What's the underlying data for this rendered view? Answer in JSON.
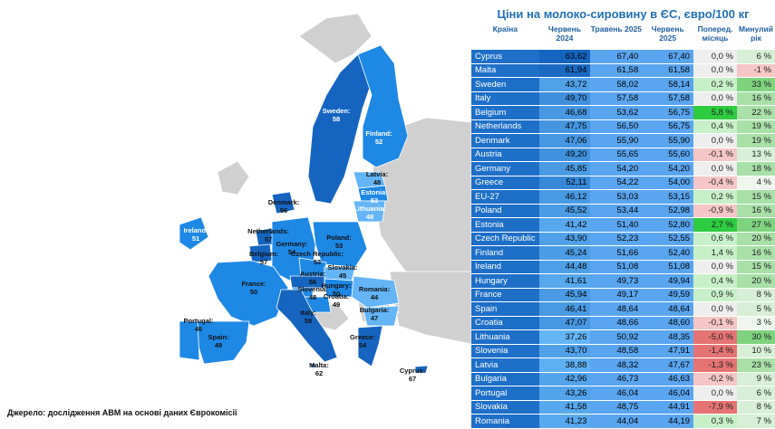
{
  "title": "Ціни на молоко-сировину в ЄС, євро/100 кг",
  "source": "Джерело: дослідження АВМ на основі даних Єврокомісії",
  "headers": {
    "country": "Країна",
    "jun2024": "Червень 2024",
    "may2025": "Травень 2025",
    "jun2025": "Червень 2025",
    "prev_month": "Поперед. місяць",
    "prev_year": "Минулий рік"
  },
  "colors": {
    "dark_blue": "#1565c0",
    "mid_blue": "#1e88e5",
    "light_blue": "#64b5f6",
    "grey_land": "#d0d0d0",
    "positive_green": "#2ecc40",
    "negative_red": "#e57373",
    "title_blue": "#1f6fb5"
  },
  "map_labels": [
    {
      "name": "Sweden",
      "value": "58"
    },
    {
      "name": "Finland",
      "value": "52"
    },
    {
      "name": "Latvia",
      "value": "48"
    },
    {
      "name": "Estonia",
      "value": "53"
    },
    {
      "name": "Lithuania",
      "value": "48"
    },
    {
      "name": "Denmark",
      "value": "56"
    },
    {
      "name": "Ireland",
      "value": "51"
    },
    {
      "name": "Netherlands",
      "value": "57"
    },
    {
      "name": "Germany",
      "value": "54"
    },
    {
      "name": "Belgium",
      "value": "57"
    },
    {
      "name": "Poland",
      "value": "53"
    },
    {
      "name": "Czech Republic",
      "value": "53"
    },
    {
      "name": "Slovakia",
      "value": "45"
    },
    {
      "name": "Austria",
      "value": "56"
    },
    {
      "name": "Hungary",
      "value": "50"
    },
    {
      "name": "Slovenia",
      "value": "48"
    },
    {
      "name": "Croatia",
      "value": "49"
    },
    {
      "name": "Romania",
      "value": "44"
    },
    {
      "name": "France",
      "value": "50"
    },
    {
      "name": "Bulgaria",
      "value": "47"
    },
    {
      "name": "Italy",
      "value": "58"
    },
    {
      "name": "Portugal",
      "value": "46"
    },
    {
      "name": "Spain",
      "value": "49"
    },
    {
      "name": "Greece",
      "value": "54"
    },
    {
      "name": "Malta",
      "value": "62"
    },
    {
      "name": "Cyprus",
      "value": "67"
    }
  ],
  "chart_data": {
    "type": "table",
    "title": "Ціни на молоко-сировину в ЄС, євро/100 кг",
    "columns": [
      "Країна",
      "Червень 2024",
      "Травень 2025",
      "Червень 2025",
      "Поперед. місяць",
      "Минулий рік"
    ],
    "rows": [
      {
        "country": "Cyprus",
        "jun2024": "63,62",
        "may2025": "67,40",
        "jun2025": "67,40",
        "mom": "0,0 %",
        "yoy": "6 %",
        "mom_v": 0.0,
        "yoy_v": 6
      },
      {
        "country": "Malta",
        "jun2024": "61,94",
        "may2025": "61,58",
        "jun2025": "61,58",
        "mom": "0,0 %",
        "yoy": "-1 %",
        "mom_v": 0.0,
        "yoy_v": -1
      },
      {
        "country": "Sweden",
        "jun2024": "43,72",
        "may2025": "58,02",
        "jun2025": "58,14",
        "mom": "0,2 %",
        "yoy": "33 %",
        "mom_v": 0.2,
        "yoy_v": 33
      },
      {
        "country": "Italy",
        "jun2024": "49,70",
        "may2025": "57,58",
        "jun2025": "57,58",
        "mom": "0,0 %",
        "yoy": "16 %",
        "mom_v": 0.0,
        "yoy_v": 16
      },
      {
        "country": "Belgium",
        "jun2024": "46,68",
        "may2025": "53,62",
        "jun2025": "56,75",
        "mom": "5,8 %",
        "yoy": "22 %",
        "mom_v": 5.8,
        "yoy_v": 22
      },
      {
        "country": "Netherlands",
        "jun2024": "47,75",
        "may2025": "56,50",
        "jun2025": "56,75",
        "mom": "0,4 %",
        "yoy": "19 %",
        "mom_v": 0.4,
        "yoy_v": 19
      },
      {
        "country": "Denmark",
        "jun2024": "47,06",
        "may2025": "55,90",
        "jun2025": "55,90",
        "mom": "0,0 %",
        "yoy": "19 %",
        "mom_v": 0.0,
        "yoy_v": 19
      },
      {
        "country": "Austria",
        "jun2024": "49,20",
        "may2025": "55,65",
        "jun2025": "55,60",
        "mom": "-0,1 %",
        "yoy": "13 %",
        "mom_v": -0.1,
        "yoy_v": 13
      },
      {
        "country": "Germany",
        "jun2024": "45,85",
        "may2025": "54,20",
        "jun2025": "54,20",
        "mom": "0,0 %",
        "yoy": "18 %",
        "mom_v": 0.0,
        "yoy_v": 18
      },
      {
        "country": "Greece",
        "jun2024": "52,11",
        "may2025": "54,22",
        "jun2025": "54,00",
        "mom": "-0,4 %",
        "yoy": "4 %",
        "mom_v": -0.4,
        "yoy_v": 4
      },
      {
        "country": "EU-27",
        "jun2024": "46,12",
        "may2025": "53,03",
        "jun2025": "53,15",
        "mom": "0,2 %",
        "yoy": "15 %",
        "mom_v": 0.2,
        "yoy_v": 15
      },
      {
        "country": "Poland",
        "jun2024": "45,52",
        "may2025": "53,44",
        "jun2025": "52,98",
        "mom": "-0,9 %",
        "yoy": "16 %",
        "mom_v": -0.9,
        "yoy_v": 16
      },
      {
        "country": "Estonia",
        "jun2024": "41,42",
        "may2025": "51,40",
        "jun2025": "52,80",
        "mom": "2,7 %",
        "yoy": "27 %",
        "mom_v": 2.7,
        "yoy_v": 27
      },
      {
        "country": "Czech Republic",
        "jun2024": "43,90",
        "may2025": "52,23",
        "jun2025": "52,55",
        "mom": "0,6 %",
        "yoy": "20 %",
        "mom_v": 0.6,
        "yoy_v": 20
      },
      {
        "country": "Finland",
        "jun2024": "45,24",
        "may2025": "51,66",
        "jun2025": "52,40",
        "mom": "1,4 %",
        "yoy": "16 %",
        "mom_v": 1.4,
        "yoy_v": 16
      },
      {
        "country": "Ireland",
        "jun2024": "44,48",
        "may2025": "51,08",
        "jun2025": "51,08",
        "mom": "0,0 %",
        "yoy": "15 %",
        "mom_v": 0.0,
        "yoy_v": 15
      },
      {
        "country": "Hungary",
        "jun2024": "41,61",
        "may2025": "49,73",
        "jun2025": "49,94",
        "mom": "0,4 %",
        "yoy": "20 %",
        "mom_v": 0.4,
        "yoy_v": 20
      },
      {
        "country": "France",
        "jun2024": "45,94",
        "may2025": "49,17",
        "jun2025": "49,59",
        "mom": "0,9 %",
        "yoy": "8 %",
        "mom_v": 0.9,
        "yoy_v": 8
      },
      {
        "country": "Spain",
        "jun2024": "46,41",
        "may2025": "48,64",
        "jun2025": "48,64",
        "mom": "0,0 %",
        "yoy": "5 %",
        "mom_v": 0.0,
        "yoy_v": 5
      },
      {
        "country": "Croatia",
        "jun2024": "47,07",
        "may2025": "48,66",
        "jun2025": "48,60",
        "mom": "-0,1 %",
        "yoy": "3 %",
        "mom_v": -0.1,
        "yoy_v": 3
      },
      {
        "country": "Lithuania",
        "jun2024": "37,26",
        "may2025": "50,92",
        "jun2025": "48,35",
        "mom": "-5,0 %",
        "yoy": "30 %",
        "mom_v": -5.0,
        "yoy_v": 30
      },
      {
        "country": "Slovenia",
        "jun2024": "43,70",
        "may2025": "48,58",
        "jun2025": "47,91",
        "mom": "-1,4 %",
        "yoy": "10 %",
        "mom_v": -1.4,
        "yoy_v": 10
      },
      {
        "country": "Latvia",
        "jun2024": "38,88",
        "may2025": "48,32",
        "jun2025": "47,67",
        "mom": "-1,3 %",
        "yoy": "23 %",
        "mom_v": -1.3,
        "yoy_v": 23
      },
      {
        "country": "Bulgaria",
        "jun2024": "42,96",
        "may2025": "46,73",
        "jun2025": "46,63",
        "mom": "-0,2 %",
        "yoy": "9 %",
        "mom_v": -0.2,
        "yoy_v": 9
      },
      {
        "country": "Portugal",
        "jun2024": "43,26",
        "may2025": "46,04",
        "jun2025": "46,04",
        "mom": "0,0 %",
        "yoy": "6 %",
        "mom_v": 0.0,
        "yoy_v": 6
      },
      {
        "country": "Slovakia",
        "jun2024": "41,58",
        "may2025": "48,75",
        "jun2025": "44,91",
        "mom": "-7,9 %",
        "yoy": "8 %",
        "mom_v": -7.9,
        "yoy_v": 8
      },
      {
        "country": "Romania",
        "jun2024": "41,23",
        "may2025": "44,04",
        "jun2025": "44,19",
        "mom": "0,3 %",
        "yoy": "7 %",
        "mom_v": 0.3,
        "yoy_v": 7
      }
    ]
  }
}
